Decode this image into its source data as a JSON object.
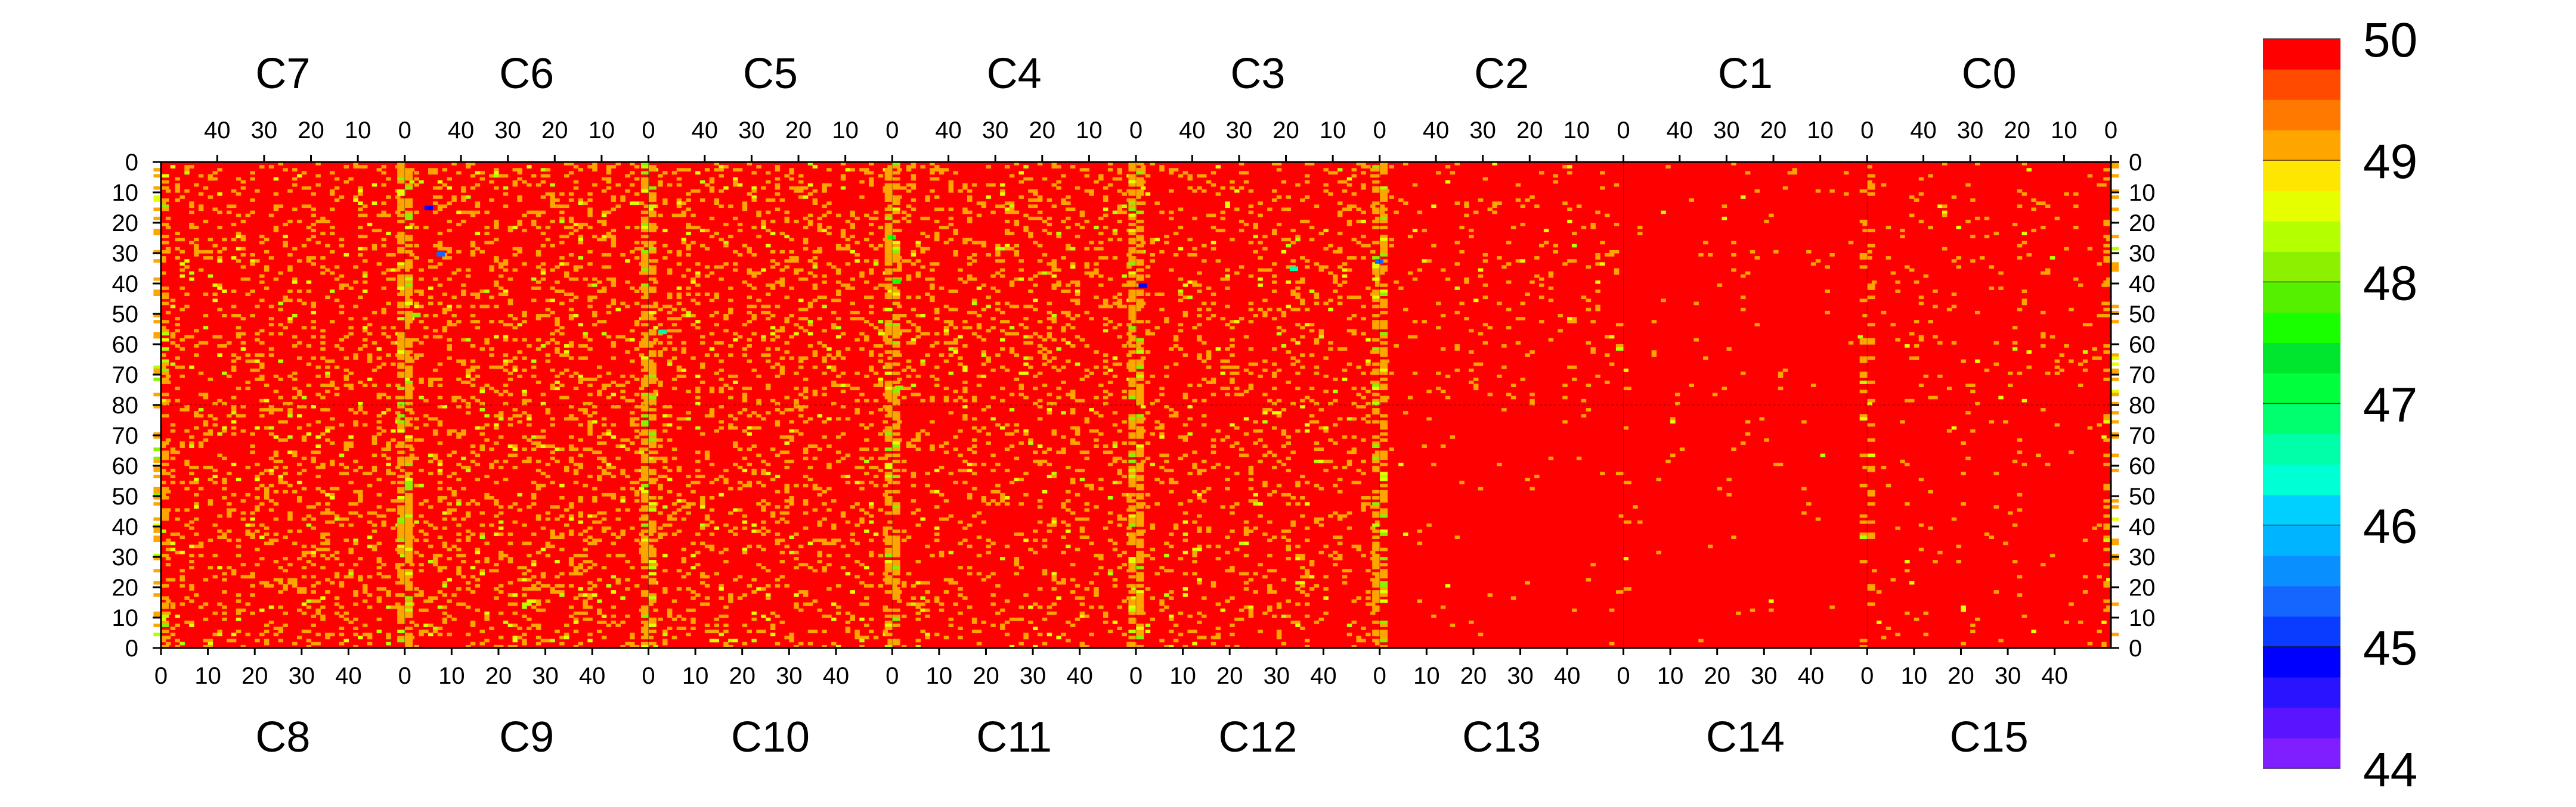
{
  "chart_data": {
    "type": "heatmap",
    "title": "",
    "xlabel": "",
    "ylabel": "",
    "grid": false,
    "legend": "colorbar-right",
    "colorbar": {
      "min": 44,
      "max": 50,
      "ticks": [
        44,
        45,
        46,
        47,
        48,
        49,
        50
      ],
      "tick_labels": [
        "44",
        "45",
        "46",
        "47",
        "48",
        "49",
        "50"
      ],
      "levels": 24,
      "colors": [
        "#7f1fff",
        "#5a14ff",
        "#2a14ff",
        "#0000ff",
        "#0a3cff",
        "#1466ff",
        "#0a8fff",
        "#00b4ff",
        "#00d0ff",
        "#00ffd4",
        "#00ffa8",
        "#00ff6e",
        "#00ff3c",
        "#00e62e",
        "#19ff00",
        "#55f000",
        "#8cf000",
        "#b4ff00",
        "#e6ff00",
        "#ffe600",
        "#ffa500",
        "#ff7800",
        "#ff4a00",
        "#ff0000"
      ]
    },
    "top_row": {
      "chips": [
        "C7",
        "C6",
        "C5",
        "C4",
        "C3",
        "C2",
        "C1",
        "C0"
      ],
      "x_tick_labels": [
        "40",
        "30",
        "20",
        "10",
        "0"
      ],
      "x_tick_values": [
        40,
        30,
        20,
        10,
        0
      ],
      "x_range": [
        52,
        0
      ],
      "y_tick_labels": [
        "0",
        "10",
        "20",
        "30",
        "40",
        "50",
        "60",
        "70",
        "80"
      ],
      "y_tick_values": [
        0,
        10,
        20,
        30,
        40,
        50,
        60,
        70,
        80
      ],
      "y_range": [
        0,
        80
      ]
    },
    "bottom_row": {
      "chips": [
        "C8",
        "C9",
        "C10",
        "C11",
        "C12",
        "C13",
        "C14",
        "C15"
      ],
      "x_tick_labels": [
        "0",
        "10",
        "20",
        "30",
        "40"
      ],
      "x_tick_values": [
        0,
        10,
        20,
        30,
        40
      ],
      "x_range": [
        0,
        52
      ],
      "y_tick_labels": [
        "80",
        "70",
        "60",
        "50",
        "40",
        "30",
        "20",
        "10",
        "0"
      ],
      "y_tick_values": [
        80,
        70,
        60,
        50,
        40,
        30,
        20,
        10,
        0
      ],
      "y_range": [
        80,
        0
      ]
    },
    "columns_per_chip": 52,
    "rows_per_chip": 80,
    "plateau_value": 50,
    "noise_density": {
      "top": [
        0.13,
        0.16,
        0.16,
        0.15,
        0.12,
        0.05,
        0.015,
        0.035
      ],
      "bottom": [
        0.16,
        0.16,
        0.13,
        0.11,
        0.1,
        0.01,
        0.01,
        0.02
      ]
    },
    "edge_column_density": [
      0.35,
      0.6,
      0.6,
      0.55,
      0.6,
      0.55,
      0.04,
      0.15,
      0.25
    ],
    "low_outlier_values": [
      44.8,
      45.3,
      46.5,
      47.5,
      48.2
    ]
  }
}
